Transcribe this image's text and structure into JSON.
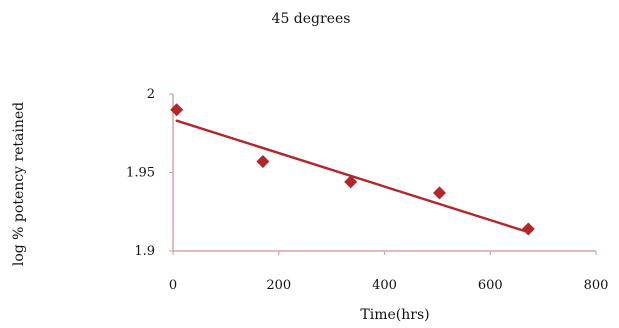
{
  "chart_data": {
    "type": "scatter",
    "title": "45 degrees",
    "xlabel": "Time(hrs)",
    "ylabel": "log % potency retained",
    "xlim": [
      0,
      800
    ],
    "ylim": [
      1.9,
      2
    ],
    "xticks": [
      0,
      200,
      400,
      600,
      800
    ],
    "yticks": [
      1.9,
      1.95,
      2
    ],
    "ytick_labels": [
      "1.9",
      "1.95",
      "2"
    ],
    "grid": false,
    "legend": "none",
    "series": [
      {
        "marker": "diamond",
        "color": "#B3262A",
        "x": [
          7,
          170,
          336,
          504,
          672
        ],
        "y": [
          1.99,
          1.957,
          1.944,
          1.937,
          1.914
        ]
      }
    ],
    "trendline": {
      "color": "#B3262A",
      "x": [
        7,
        672
      ],
      "y": [
        1.983,
        1.912
      ]
    }
  }
}
